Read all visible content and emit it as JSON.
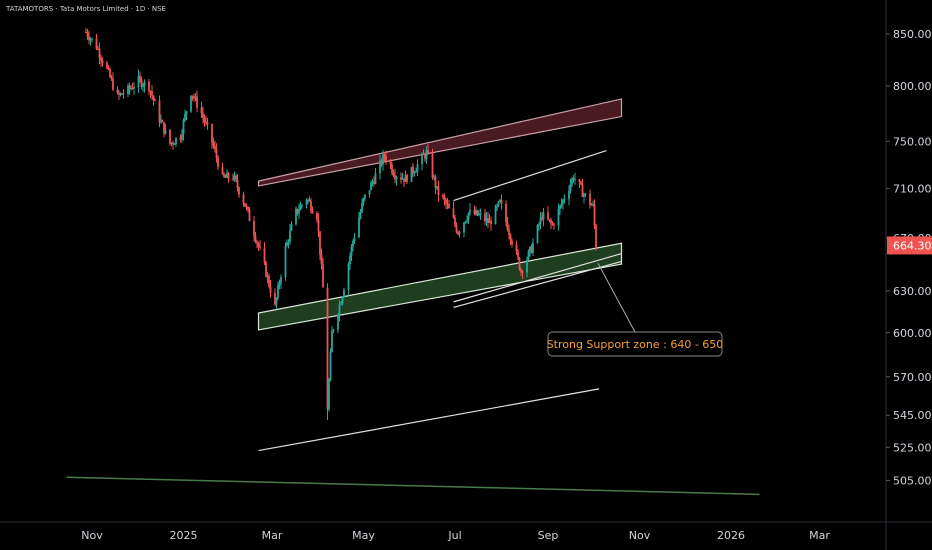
{
  "header": {
    "title": "TATAMOTORS · Tata Motors Limited · 1D · NSE"
  },
  "colors": {
    "background": "#000000",
    "up": "#26a69a",
    "down": "#ef5350",
    "support_fill": "#1f3d1f",
    "resistance_fill": "#4a1a22",
    "trendline": "#e0e0e0",
    "annotation": "#f7a035",
    "price_tag": "#ef5350"
  },
  "chart_data": {
    "type": "candlestick",
    "title": "TATAMOTORS · Tata Motors Limited · 1D · NSE",
    "y_scale": "log",
    "ylim": [
      492,
      868
    ],
    "y_ticks": [
      {
        "value": 850,
        "label": "850.00"
      },
      {
        "value": 800,
        "label": "800.00"
      },
      {
        "value": 750,
        "label": "750.00"
      },
      {
        "value": 710,
        "label": "710.00"
      },
      {
        "value": 670,
        "label": "670.00"
      },
      {
        "value": 630,
        "label": "630.00"
      },
      {
        "value": 600,
        "label": "600.00"
      },
      {
        "value": 570,
        "label": "570.00"
      },
      {
        "value": 545,
        "label": "545.00"
      },
      {
        "value": 525,
        "label": "525.00"
      },
      {
        "value": 505,
        "label": "505.00"
      }
    ],
    "x_ticks": [
      {
        "date": "2024-11-01",
        "label": "Nov"
      },
      {
        "date": "2025-01-01",
        "label": "2025"
      },
      {
        "date": "2025-03-01",
        "label": "Mar"
      },
      {
        "date": "2025-05-01",
        "label": "May"
      },
      {
        "date": "2025-07-01",
        "label": "Jul"
      },
      {
        "date": "2025-09-01",
        "label": "Sep"
      },
      {
        "date": "2025-11-01",
        "label": "Nov"
      },
      {
        "date": "2026-01-01",
        "label": "2026"
      },
      {
        "date": "2026-03-01",
        "label": "Mar"
      }
    ],
    "last_price": {
      "value": 664.3,
      "label": "664.30"
    },
    "price_path": [
      [
        "2024-10-28",
        852
      ],
      [
        "2024-11-04",
        838
      ],
      [
        "2024-11-11",
        815
      ],
      [
        "2024-11-18",
        790
      ],
      [
        "2024-11-25",
        796
      ],
      [
        "2024-12-02",
        805
      ],
      [
        "2024-12-09",
        800
      ],
      [
        "2024-12-16",
        770
      ],
      [
        "2024-12-23",
        748
      ],
      [
        "2024-12-30",
        755
      ],
      [
        "2025-01-06",
        795
      ],
      [
        "2025-01-13",
        775
      ],
      [
        "2025-01-20",
        750
      ],
      [
        "2025-01-27",
        718
      ],
      [
        "2025-02-03",
        720
      ],
      [
        "2025-02-10",
        700
      ],
      [
        "2025-02-17",
        675
      ],
      [
        "2025-02-24",
        648
      ],
      [
        "2025-03-03",
        618
      ],
      [
        "2025-03-10",
        662
      ],
      [
        "2025-03-17",
        690
      ],
      [
        "2025-03-24",
        702
      ],
      [
        "2025-03-31",
        688
      ],
      [
        "2025-04-04",
        632
      ],
      [
        "2025-04-07",
        550
      ],
      [
        "2025-04-10",
        600
      ],
      [
        "2025-04-17",
        628
      ],
      [
        "2025-04-24",
        668
      ],
      [
        "2025-05-01",
        700
      ],
      [
        "2025-05-08",
        718
      ],
      [
        "2025-05-15",
        738
      ],
      [
        "2025-05-22",
        722
      ],
      [
        "2025-05-29",
        718
      ],
      [
        "2025-06-05",
        728
      ],
      [
        "2025-06-12",
        740
      ],
      [
        "2025-06-19",
        708
      ],
      [
        "2025-06-26",
        695
      ],
      [
        "2025-07-03",
        675
      ],
      [
        "2025-07-10",
        690
      ],
      [
        "2025-07-17",
        688
      ],
      [
        "2025-07-24",
        682
      ],
      [
        "2025-07-31",
        698
      ],
      [
        "2025-08-07",
        672
      ],
      [
        "2025-08-14",
        645
      ],
      [
        "2025-08-21",
        662
      ],
      [
        "2025-08-28",
        688
      ],
      [
        "2025-09-04",
        680
      ],
      [
        "2025-09-11",
        700
      ],
      [
        "2025-09-18",
        720
      ],
      [
        "2025-09-25",
        705
      ],
      [
        "2025-10-01",
        695
      ],
      [
        "2025-10-03",
        664.3
      ]
    ],
    "drawings": {
      "support_zone": {
        "from": [
          "2025-02-20",
          602,
          614
        ],
        "to": [
          "2025-10-20",
          650,
          666
        ]
      },
      "resistance_band": {
        "from": [
          "2025-02-20",
          712,
          716
        ],
        "to": [
          "2025-10-20",
          772,
          788
        ]
      },
      "trendlines": [
        {
          "name": "lower-channel-line",
          "from": [
            "2025-02-20",
            523
          ],
          "to": [
            "2025-10-05",
            562
          ]
        },
        {
          "name": "upper-channel-line",
          "from": [
            "2025-06-30",
            700
          ],
          "to": [
            "2025-10-10",
            742
          ]
        },
        {
          "name": "rising-support-line-1",
          "from": [
            "2025-06-30",
            622
          ],
          "to": [
            "2025-10-20",
            658
          ]
        },
        {
          "name": "rising-support-line-2",
          "from": [
            "2025-06-30",
            618
          ],
          "to": [
            "2025-10-20",
            652
          ]
        },
        {
          "name": "bottom-long-line",
          "from": [
            "2024-10-15",
            507
          ],
          "to": [
            "2026-01-20",
            497
          ]
        }
      ]
    },
    "annotation": {
      "text": "Strong Support zone : 640 - 650",
      "anchor": [
        "2025-10-05",
        640
      ]
    }
  }
}
